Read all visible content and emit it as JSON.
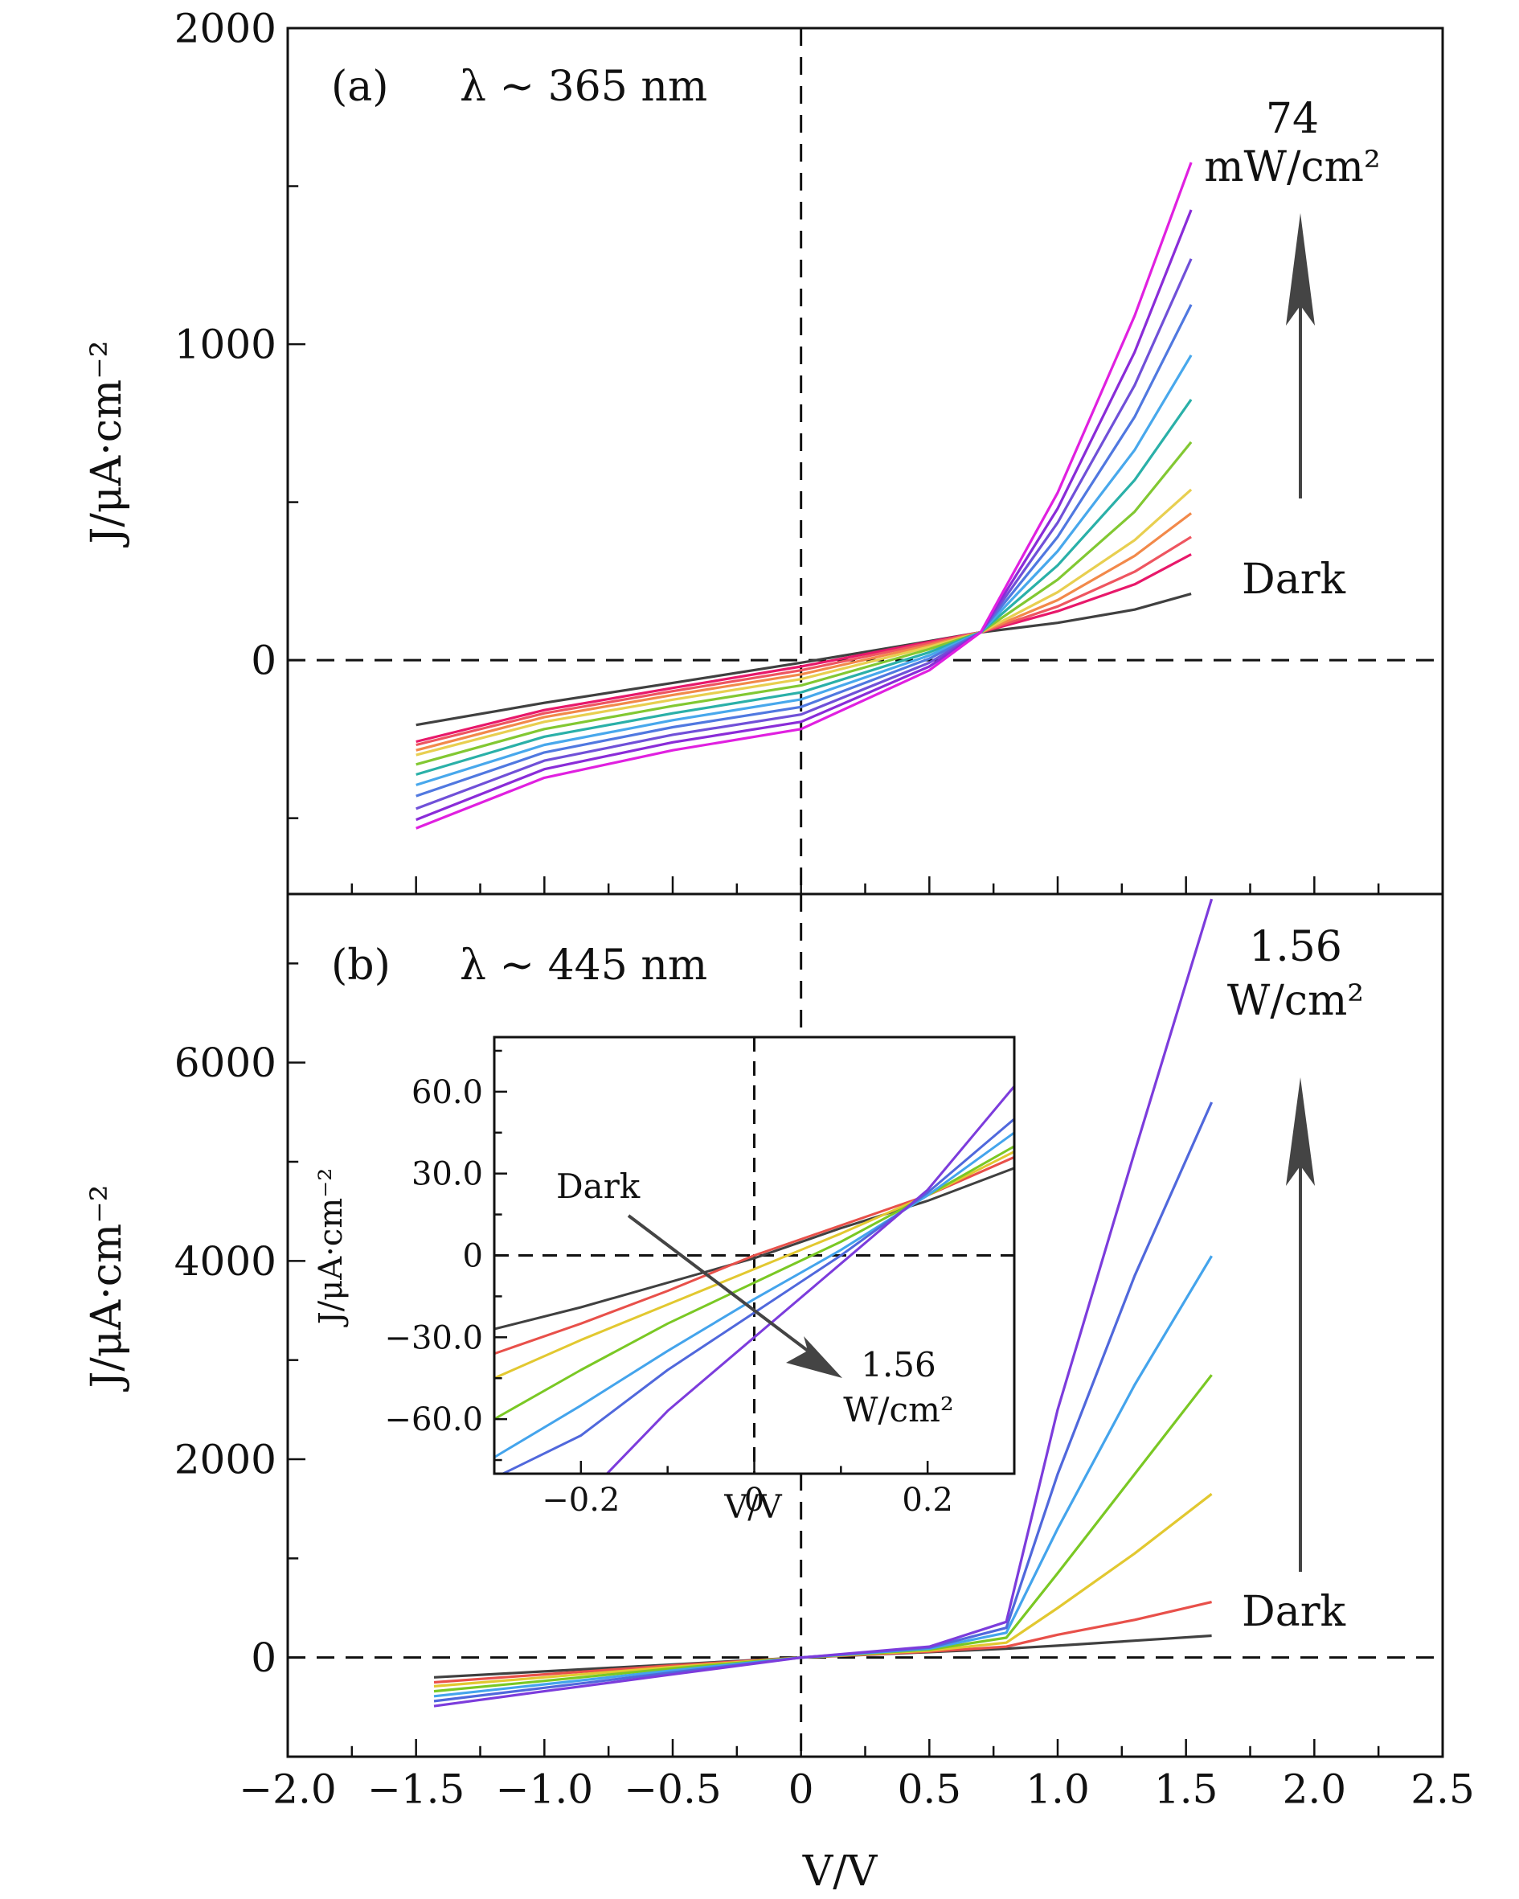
{
  "figure": {
    "xlabel": "V/V",
    "x_ticks": [
      "−2.0",
      "−1.5",
      "−1.0",
      "−0.5",
      "0",
      "0.5",
      "1.0",
      "1.5",
      "2.0",
      "2.5"
    ]
  },
  "chart_data": [
    {
      "type": "line",
      "panel_label": "(a)",
      "wavelength_label": "λ ~ 365 nm",
      "ylabel": "J/μA·cm⁻²",
      "xlim": [
        -2.0,
        2.5
      ],
      "ylim": [
        -740,
        2000
      ],
      "y_ticks": [
        "0",
        "1000",
        "2000"
      ],
      "annotations": {
        "max_value": "74",
        "max_unit": "mW/cm²",
        "dark": "Dark"
      },
      "guide_lines": {
        "x": 0,
        "y": 0,
        "style": "dashed"
      },
      "series": [
        {
          "color": "#404040",
          "points": [
            [
              -1.5,
              -205
            ],
            [
              -1.0,
              -135
            ],
            [
              -0.5,
              -72
            ],
            [
              0.0,
              -8
            ],
            [
              0.5,
              60
            ],
            [
              0.7,
              88
            ],
            [
              1.0,
              118
            ],
            [
              1.3,
              160
            ],
            [
              1.52,
              210
            ]
          ]
        },
        {
          "color": "#E8186A",
          "points": [
            [
              -1.5,
              -258
            ],
            [
              -1.0,
              -158
            ],
            [
              -0.5,
              -88
            ],
            [
              0.0,
              -20
            ],
            [
              0.5,
              58
            ],
            [
              0.7,
              88
            ],
            [
              1.0,
              155
            ],
            [
              1.3,
              240
            ],
            [
              1.52,
              335
            ]
          ]
        },
        {
          "color": "#EE5560",
          "points": [
            [
              -1.5,
              -268
            ],
            [
              -1.0,
              -168
            ],
            [
              -0.5,
              -98
            ],
            [
              0.0,
              -32
            ],
            [
              0.5,
              54
            ],
            [
              0.7,
              88
            ],
            [
              1.0,
              170
            ],
            [
              1.3,
              280
            ],
            [
              1.52,
              390
            ]
          ]
        },
        {
          "color": "#F2894A",
          "points": [
            [
              -1.5,
              -285
            ],
            [
              -1.0,
              -180
            ],
            [
              -0.5,
              -110
            ],
            [
              0.0,
              -45
            ],
            [
              0.5,
              48
            ],
            [
              0.7,
              88
            ],
            [
              1.0,
              190
            ],
            [
              1.3,
              330
            ],
            [
              1.52,
              465
            ]
          ]
        },
        {
          "color": "#E8CF50",
          "points": [
            [
              -1.5,
              -300
            ],
            [
              -1.0,
              -195
            ],
            [
              -0.5,
              -125
            ],
            [
              0.0,
              -60
            ],
            [
              0.5,
              42
            ],
            [
              0.7,
              88
            ],
            [
              1.0,
              215
            ],
            [
              1.3,
              380
            ],
            [
              1.52,
              540
            ]
          ]
        },
        {
          "color": "#82C832",
          "points": [
            [
              -1.5,
              -330
            ],
            [
              -1.0,
              -218
            ],
            [
              -0.5,
              -145
            ],
            [
              0.0,
              -80
            ],
            [
              0.5,
              35
            ],
            [
              0.7,
              88
            ],
            [
              1.0,
              255
            ],
            [
              1.3,
              470
            ],
            [
              1.52,
              690
            ]
          ]
        },
        {
          "color": "#2AB0A8",
          "points": [
            [
              -1.5,
              -362
            ],
            [
              -1.0,
              -242
            ],
            [
              -0.5,
              -168
            ],
            [
              0.0,
              -102
            ],
            [
              0.5,
              25
            ],
            [
              0.7,
              88
            ],
            [
              1.0,
              300
            ],
            [
              1.3,
              570
            ],
            [
              1.52,
              825
            ]
          ]
        },
        {
          "color": "#48A8EC",
          "points": [
            [
              -1.5,
              -395
            ],
            [
              -1.0,
              -268
            ],
            [
              -0.5,
              -190
            ],
            [
              0.0,
              -124
            ],
            [
              0.5,
              15
            ],
            [
              0.7,
              88
            ],
            [
              1.0,
              345
            ],
            [
              1.3,
              665
            ],
            [
              1.52,
              965
            ]
          ]
        },
        {
          "color": "#5078E0",
          "points": [
            [
              -1.5,
              -430
            ],
            [
              -1.0,
              -292
            ],
            [
              -0.5,
              -212
            ],
            [
              0.0,
              -148
            ],
            [
              0.5,
              5
            ],
            [
              0.7,
              88
            ],
            [
              1.0,
              390
            ],
            [
              1.3,
              770
            ],
            [
              1.52,
              1125
            ]
          ]
        },
        {
          "color": "#7050D8",
          "points": [
            [
              -1.5,
              -470
            ],
            [
              -1.0,
              -318
            ],
            [
              -0.5,
              -236
            ],
            [
              0.0,
              -172
            ],
            [
              0.5,
              -8
            ],
            [
              0.7,
              88
            ],
            [
              1.0,
              435
            ],
            [
              1.3,
              870
            ],
            [
              1.52,
              1270
            ]
          ]
        },
        {
          "color": "#8A2CD8",
          "points": [
            [
              -1.5,
              -505
            ],
            [
              -1.0,
              -345
            ],
            [
              -0.5,
              -260
            ],
            [
              0.0,
              -195
            ],
            [
              0.5,
              -20
            ],
            [
              0.7,
              88
            ],
            [
              1.0,
              480
            ],
            [
              1.3,
              975
            ],
            [
              1.52,
              1425
            ]
          ]
        },
        {
          "color": "#E020E0",
          "points": [
            [
              -1.5,
              -532
            ],
            [
              -1.0,
              -372
            ],
            [
              -0.5,
              -285
            ],
            [
              0.0,
              -218
            ],
            [
              0.5,
              -32
            ],
            [
              0.7,
              88
            ],
            [
              1.0,
              530
            ],
            [
              1.3,
              1090
            ],
            [
              1.52,
              1575
            ]
          ]
        }
      ]
    },
    {
      "type": "line",
      "panel_label": "(b)",
      "wavelength_label": "λ ~ 445 nm",
      "ylabel": "J/μA·cm⁻²",
      "xlim": [
        -2.0,
        2.5
      ],
      "ylim": [
        -1000,
        7700
      ],
      "y_ticks": [
        "0",
        "2000",
        "4000",
        "6000"
      ],
      "annotations": {
        "max_value": "1.56",
        "max_unit": "W/cm²",
        "dark": "Dark"
      },
      "guide_lines": {
        "x": 0,
        "y": 0,
        "style": "dashed"
      },
      "series": [
        {
          "color": "#404040",
          "points": [
            [
              -1.43,
              -200
            ],
            [
              -1.0,
              -140
            ],
            [
              -0.5,
              -70
            ],
            [
              0.0,
              0
            ],
            [
              0.5,
              55
            ],
            [
              0.8,
              90
            ],
            [
              1.0,
              120
            ],
            [
              1.3,
              170
            ],
            [
              1.6,
              220
            ]
          ]
        },
        {
          "color": "#E8504A",
          "points": [
            [
              -1.43,
              -250
            ],
            [
              -1.0,
              -170
            ],
            [
              -0.5,
              -80
            ],
            [
              0.0,
              0
            ],
            [
              0.5,
              60
            ],
            [
              0.8,
              110
            ],
            [
              1.0,
              230
            ],
            [
              1.3,
              380
            ],
            [
              1.6,
              560
            ]
          ]
        },
        {
          "color": "#E2C830",
          "points": [
            [
              -1.43,
              -290
            ],
            [
              -1.0,
              -200
            ],
            [
              -0.5,
              -95
            ],
            [
              0.0,
              0
            ],
            [
              0.5,
              70
            ],
            [
              0.8,
              150
            ],
            [
              1.0,
              500
            ],
            [
              1.3,
              1050
            ],
            [
              1.6,
              1650
            ]
          ]
        },
        {
          "color": "#7AC824",
          "points": [
            [
              -1.43,
              -340
            ],
            [
              -1.0,
              -235
            ],
            [
              -0.5,
              -110
            ],
            [
              0.0,
              0
            ],
            [
              0.5,
              80
            ],
            [
              0.8,
              200
            ],
            [
              1.0,
              850
            ],
            [
              1.3,
              1850
            ],
            [
              1.6,
              2850
            ]
          ]
        },
        {
          "color": "#44A4EC",
          "points": [
            [
              -1.43,
              -390
            ],
            [
              -1.0,
              -270
            ],
            [
              -0.5,
              -130
            ],
            [
              0.0,
              0
            ],
            [
              0.5,
              90
            ],
            [
              0.8,
              250
            ],
            [
              1.0,
              1300
            ],
            [
              1.3,
              2750
            ],
            [
              1.6,
              4050
            ]
          ]
        },
        {
          "color": "#5068DC",
          "points": [
            [
              -1.43,
              -440
            ],
            [
              -1.0,
              -305
            ],
            [
              -0.5,
              -150
            ],
            [
              0.0,
              0
            ],
            [
              0.5,
              100
            ],
            [
              0.8,
              300
            ],
            [
              1.0,
              1850
            ],
            [
              1.3,
              3850
            ],
            [
              1.6,
              5600
            ]
          ]
        },
        {
          "color": "#7C3CDC",
          "points": [
            [
              -1.43,
              -490
            ],
            [
              -1.0,
              -340
            ],
            [
              -0.5,
              -170
            ],
            [
              0.0,
              0
            ],
            [
              0.5,
              110
            ],
            [
              0.8,
              360
            ],
            [
              1.0,
              2500
            ],
            [
              1.3,
              5100
            ],
            [
              1.6,
              7650
            ]
          ]
        }
      ]
    },
    {
      "type": "line",
      "role": "inset of (b)",
      "xlabel": "V/V",
      "ylabel": "J/μA·cm⁻²",
      "xlim": [
        -0.3,
        0.3
      ],
      "ylim": [
        -80,
        80
      ],
      "x_ticks": [
        "−0.2",
        "0",
        "0.2"
      ],
      "y_ticks": [
        "−60.0",
        "−30.0",
        "0",
        "30.0",
        "60.0"
      ],
      "annotations": {
        "dark": "Dark",
        "max_value": "1.56",
        "max_unit": "W/cm²"
      },
      "guide_lines": {
        "x": 0,
        "y": 0,
        "style": "dashed"
      },
      "series": [
        {
          "color": "#404040",
          "points": [
            [
              -0.3,
              -27
            ],
            [
              -0.2,
              -19
            ],
            [
              -0.1,
              -10
            ],
            [
              0.0,
              -1
            ],
            [
              0.1,
              10
            ],
            [
              0.2,
              20
            ],
            [
              0.3,
              32
            ]
          ]
        },
        {
          "color": "#E8504A",
          "points": [
            [
              -0.3,
              -36
            ],
            [
              -0.2,
              -25
            ],
            [
              -0.1,
              -13
            ],
            [
              0.0,
              0
            ],
            [
              0.1,
              11
            ],
            [
              0.2,
              22
            ],
            [
              0.3,
              36
            ]
          ]
        },
        {
          "color": "#E2C830",
          "points": [
            [
              -0.3,
              -45
            ],
            [
              -0.2,
              -31
            ],
            [
              -0.1,
              -18
            ],
            [
              0.0,
              -5
            ],
            [
              0.1,
              8
            ],
            [
              0.2,
              22
            ],
            [
              0.3,
              38
            ]
          ]
        },
        {
          "color": "#7AC824",
          "points": [
            [
              -0.3,
              -60
            ],
            [
              -0.2,
              -42
            ],
            [
              -0.1,
              -25
            ],
            [
              0.0,
              -10
            ],
            [
              0.1,
              5
            ],
            [
              0.2,
              22
            ],
            [
              0.3,
              40
            ]
          ]
        },
        {
          "color": "#44A4EC",
          "points": [
            [
              -0.3,
              -74
            ],
            [
              -0.2,
              -55
            ],
            [
              -0.1,
              -35
            ],
            [
              0.0,
              -16
            ],
            [
              0.1,
              2
            ],
            [
              0.2,
              22
            ],
            [
              0.3,
              45
            ]
          ]
        },
        {
          "color": "#5068DC",
          "points": [
            [
              -0.29,
              -80
            ],
            [
              -0.2,
              -66
            ],
            [
              -0.1,
              -42
            ],
            [
              0.0,
              -21
            ],
            [
              0.1,
              0
            ],
            [
              0.2,
              23
            ],
            [
              0.3,
              50
            ]
          ]
        },
        {
          "color": "#7C3CDC",
          "points": [
            [
              -0.17,
              -80
            ],
            [
              -0.1,
              -57
            ],
            [
              0.0,
              -30
            ],
            [
              0.1,
              -3
            ],
            [
              0.2,
              24
            ],
            [
              0.3,
              62
            ]
          ]
        }
      ]
    }
  ]
}
